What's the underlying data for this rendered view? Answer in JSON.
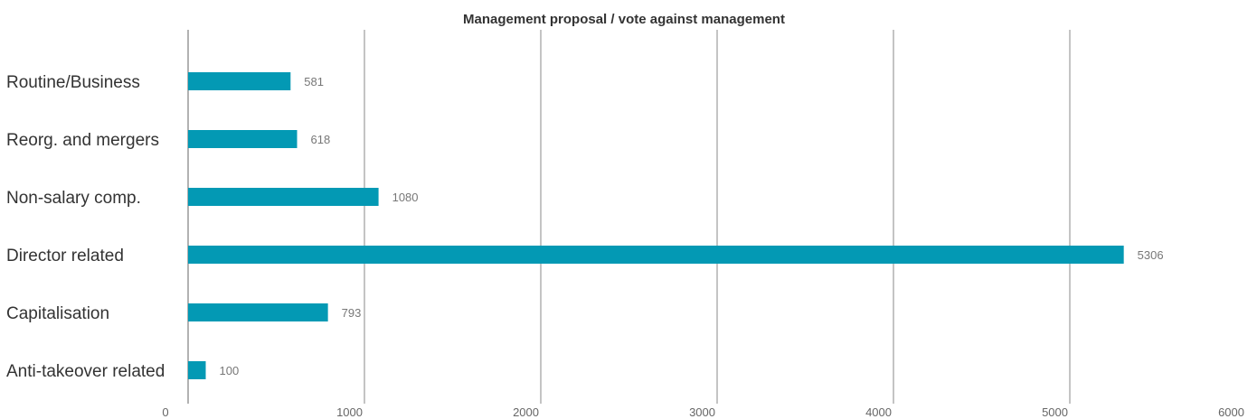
{
  "chart_data": {
    "type": "bar",
    "orientation": "horizontal",
    "title": "Management proposal / vote against management",
    "xlabel": "",
    "ylabel": "",
    "categories": [
      "Routine/Business",
      "Reorg. and mergers",
      "Non-salary comp.",
      "Director related",
      "Capitalisation",
      "Anti-takeover related"
    ],
    "values": [
      581,
      618,
      1080,
      5306,
      793,
      100
    ],
    "xlim": [
      0,
      6000
    ],
    "xticks": [
      0,
      1000,
      2000,
      3000,
      4000,
      5000,
      6000
    ],
    "xtick_labels": [
      "0",
      "1000",
      "2000",
      "3000",
      "4000",
      "5000",
      "6000"
    ],
    "value_labels": [
      "581",
      "618",
      "1080",
      "5306",
      "793",
      "100"
    ],
    "grid": "vertical",
    "legend": "none",
    "bar_color": "#0399b4"
  }
}
